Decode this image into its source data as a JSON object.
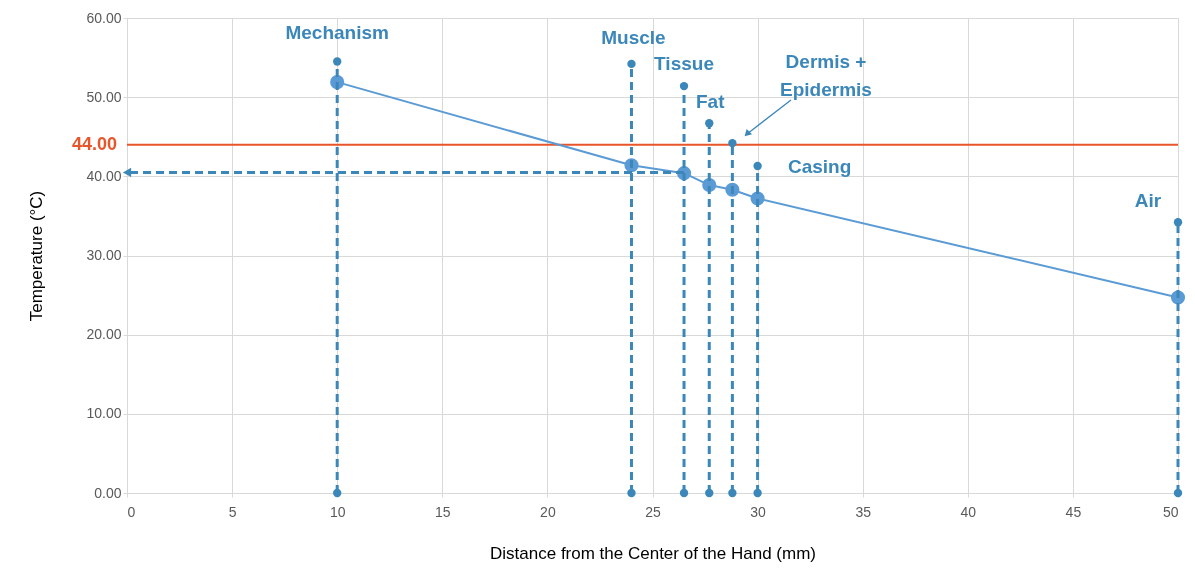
{
  "chart_data": {
    "type": "line",
    "xlabel": "Distance from the Center of the Hand (mm)",
    "ylabel": "Temperature (°C)",
    "xlim": [
      0,
      50
    ],
    "xticks": [
      0,
      5,
      10,
      15,
      20,
      25,
      30,
      35,
      40,
      45,
      50
    ],
    "ylim": [
      0,
      60
    ],
    "yticks": [
      {
        "value": 0,
        "label": "0.00"
      },
      {
        "value": 10,
        "label": "10.00"
      },
      {
        "value": 20,
        "label": "20.00"
      },
      {
        "value": 30,
        "label": "30.00"
      },
      {
        "value": 40,
        "label": "40.00"
      },
      {
        "value": 50,
        "label": "50.00"
      },
      {
        "value": 60,
        "label": "60.00"
      }
    ],
    "grid": true,
    "series": [
      {
        "type": "line",
        "color": "#5b9bd5",
        "marker": "circle",
        "line_style": "solid",
        "x": [
          10,
          24,
          26.5,
          27.7,
          28.8,
          30,
          50
        ],
        "values": [
          51.9,
          41.4,
          40.4,
          38.9,
          38.3,
          37.2,
          24.7
        ]
      },
      {
        "type": "line",
        "color": "#3b87b9",
        "marker": "circle",
        "line_style": "dashed",
        "x": [
          10,
          10
        ],
        "values": [
          0,
          54.5
        ]
      },
      {
        "type": "line",
        "color": "#3b87b9",
        "marker": "circle",
        "line_style": "dashed",
        "x": [
          24,
          24
        ],
        "values": [
          0,
          54.2
        ]
      },
      {
        "type": "line",
        "color": "#3b87b9",
        "marker": "circle",
        "line_style": "dashed",
        "x": [
          26.5,
          26.5
        ],
        "values": [
          0,
          51.4
        ]
      },
      {
        "type": "line",
        "color": "#3b87b9",
        "marker": "circle",
        "line_style": "dashed",
        "x": [
          27.7,
          27.7
        ],
        "values": [
          0,
          46.7
        ]
      },
      {
        "type": "line",
        "color": "#3b87b9",
        "marker": "circle",
        "line_style": "dashed",
        "x": [
          28.8,
          28.8
        ],
        "values": [
          0,
          44.2
        ]
      },
      {
        "type": "line",
        "color": "#3b87b9",
        "marker": "circle",
        "line_style": "dashed",
        "x": [
          30,
          30
        ],
        "values": [
          0,
          41.3
        ]
      },
      {
        "type": "line",
        "color": "#3b87b9",
        "marker": "circle",
        "line_style": "dashed",
        "x": [
          50,
          50
        ],
        "values": [
          0,
          34.2
        ]
      },
      {
        "type": "line",
        "color": "#3b87b9",
        "marker": "triangle",
        "line_style": "dashed",
        "x": [
          26.5,
          0
        ],
        "values": [
          40.5,
          40.5
        ]
      }
    ],
    "ref_lines": [
      {
        "axis": "y",
        "value": 44,
        "label": "44.00",
        "color": "#e8552a"
      }
    ],
    "annotations": [
      {
        "text": "Mechanism",
        "x": 10,
        "y": 54.5
      },
      {
        "text": "Muscle",
        "x": 24,
        "y": 54.2
      },
      {
        "text": "Tissue",
        "x": 26.5,
        "y": 51.4
      },
      {
        "text": "Fat",
        "x": 27.7,
        "y": 46.7
      },
      "Dermis +\nEpidermis",
      {
        "text": "Casing",
        "x": 30,
        "y": 41.3
      },
      {
        "text": "Air",
        "x": 50,
        "y": 34.2
      }
    ]
  }
}
